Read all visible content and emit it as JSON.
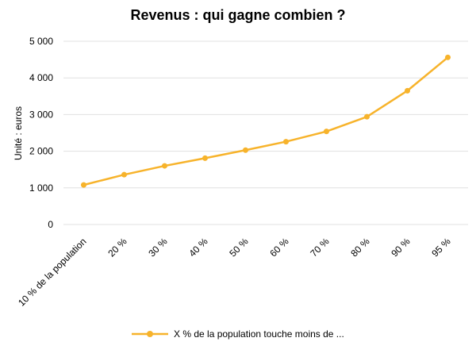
{
  "chart_data": {
    "type": "line",
    "title": "Revenus : qui gagne combien ?",
    "ylabel": "Unité : euros",
    "xlabel": "",
    "categories": [
      "10 % de la population",
      "20 %",
      "30 %",
      "40 %",
      "50 %",
      "60 %",
      "70 %",
      "80 %",
      "90 %",
      "95 %"
    ],
    "series": [
      {
        "name": "X % de la population touche moins de ...",
        "values": [
          1080,
          1360,
          1600,
          1810,
          2030,
          2260,
          2540,
          2940,
          3650,
          4560
        ],
        "color": "#f7b32b"
      }
    ],
    "ylim": [
      0,
      5000
    ],
    "yticks": [
      0,
      1000,
      2000,
      3000,
      4000,
      5000
    ],
    "ytick_labels": [
      "0",
      "1 000",
      "2 000",
      "3 000",
      "4 000",
      "5 000"
    ],
    "grid": true,
    "legend_position": "bottom"
  }
}
